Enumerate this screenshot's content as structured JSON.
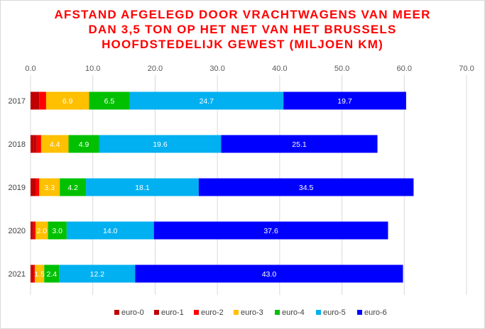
{
  "title_lines": [
    "AFSTAND AFGELEGD DOOR VRACHTWAGENS VAN MEER",
    "DAN 3,5 TON OP HET NET VAN HET BRUSSELS",
    "HOOFDSTEDELIJK GEWEST (MILJOEN KM)"
  ],
  "chart_data": {
    "type": "bar",
    "orientation": "horizontal",
    "stacked": true,
    "title": "AFSTAND AFGELEGD DOOR VRACHTWAGENS VAN MEER DAN 3,5 TON OP HET NET VAN HET BRUSSELS HOOFDSTEDELIJK GEWEST (MILJOEN KM)",
    "categories": [
      "2017",
      "2018",
      "2019",
      "2020",
      "2021"
    ],
    "xlim": [
      0,
      70
    ],
    "xticks": [
      "0.0",
      "10.0",
      "20.0",
      "30.0",
      "40.0",
      "50.0",
      "60.0",
      "70.0"
    ],
    "grid": true,
    "legend_position": "bottom",
    "series": [
      {
        "name": "euro-0",
        "color": "#c00000",
        "values": [
          0.8,
          0.5,
          0.4,
          0.3,
          0.2
        ],
        "labels": [
          "",
          "",
          "",
          "",
          ""
        ]
      },
      {
        "name": "euro-1",
        "color": "#c00000",
        "values": [
          0.6,
          0.5,
          0.4,
          0.2,
          0.2
        ],
        "labels": [
          "",
          "",
          "",
          "",
          ""
        ]
      },
      {
        "name": "euro-2",
        "color": "#ff0000",
        "values": [
          1.1,
          0.7,
          0.6,
          0.3,
          0.3
        ],
        "labels": [
          "",
          "",
          "",
          "",
          ""
        ]
      },
      {
        "name": "euro-3",
        "color": "#ffc000",
        "values": [
          6.9,
          4.4,
          3.3,
          2.0,
          1.5
        ],
        "labels": [
          "6.9",
          "4.4",
          "3.3",
          "2.0",
          "1.5"
        ]
      },
      {
        "name": "euro-4",
        "color": "#00c000",
        "values": [
          6.5,
          4.9,
          4.2,
          3.0,
          2.4
        ],
        "labels": [
          "6.5",
          "4.9",
          "4.2",
          "3.0",
          "2.4"
        ]
      },
      {
        "name": "euro-5",
        "color": "#00b0f0",
        "values": [
          24.7,
          19.6,
          18.1,
          14.0,
          12.2
        ],
        "labels": [
          "24.7",
          "19.6",
          "18.1",
          "14.0",
          "12.2"
        ]
      },
      {
        "name": "euro-6",
        "color": "#0000ff",
        "values": [
          19.7,
          25.1,
          34.5,
          37.6,
          43.0
        ],
        "labels": [
          "19.7",
          "25.1",
          "34.5",
          "37.6",
          "43.0"
        ]
      }
    ]
  }
}
